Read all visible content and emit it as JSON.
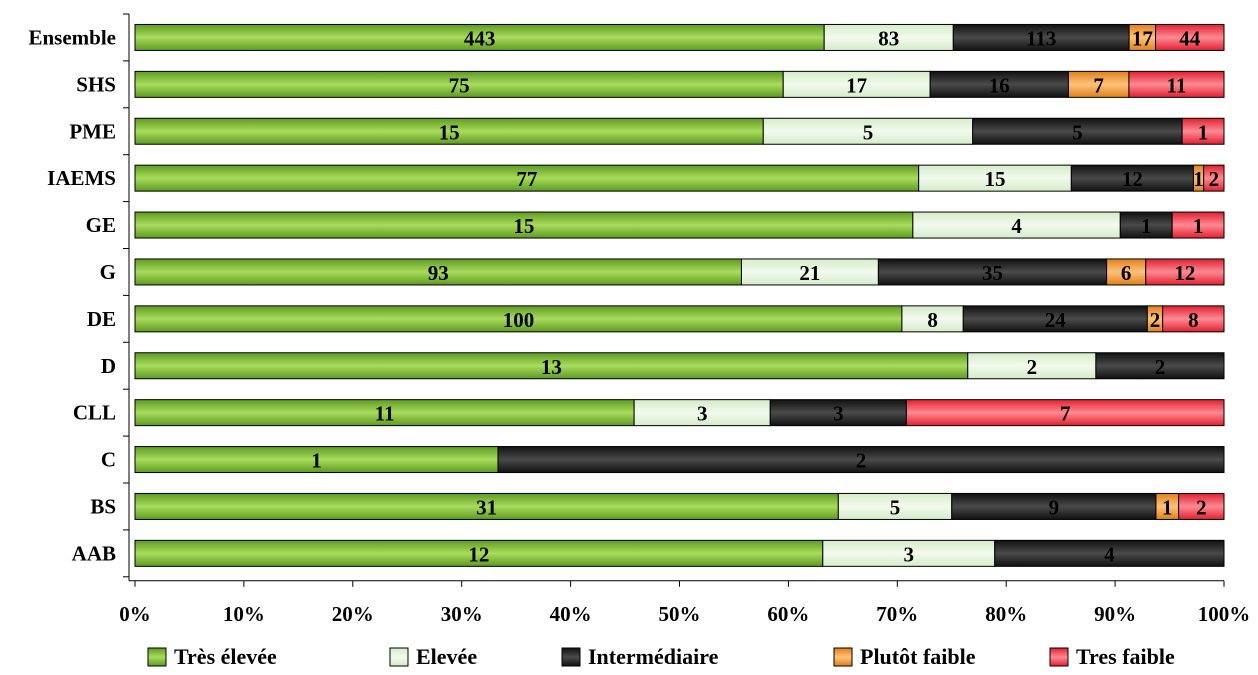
{
  "chart_data": {
    "type": "bar",
    "orientation": "horizontal",
    "stacked": "percent",
    "title": "",
    "xlabel": "",
    "ylabel": "",
    "xlim": [
      0,
      100
    ],
    "x_ticks": [
      "0%",
      "10%",
      "20%",
      "30%",
      "40%",
      "50%",
      "60%",
      "70%",
      "80%",
      "90%",
      "100%"
    ],
    "categories": [
      "Ensemble",
      "SHS",
      "PME",
      "IAEMS",
      "GE",
      "G",
      "DE",
      "D",
      "CLL",
      "C",
      "BS",
      "AAB"
    ],
    "series": [
      {
        "name": "Très élevée",
        "color": "#8cc63f",
        "values": [
          443,
          75,
          15,
          77,
          15,
          93,
          100,
          13,
          11,
          1,
          31,
          12
        ]
      },
      {
        "name": "Elevée",
        "color": "#e2f3d9",
        "values": [
          83,
          17,
          5,
          15,
          4,
          21,
          8,
          2,
          3,
          0,
          5,
          3
        ]
      },
      {
        "name": "Intermédiaire",
        "color": "#2b2b2b",
        "values": [
          113,
          16,
          5,
          12,
          1,
          35,
          24,
          2,
          3,
          2,
          9,
          4
        ]
      },
      {
        "name": "Plutôt faible",
        "color": "#f7a545",
        "values": [
          17,
          7,
          0,
          1,
          0,
          6,
          2,
          0,
          0,
          0,
          1,
          0
        ]
      },
      {
        "name": "Tres faible",
        "color": "#f04a57",
        "values": [
          44,
          11,
          1,
          2,
          1,
          12,
          8,
          0,
          7,
          0,
          2,
          0
        ]
      }
    ],
    "grid": false,
    "legend_position": "bottom"
  }
}
